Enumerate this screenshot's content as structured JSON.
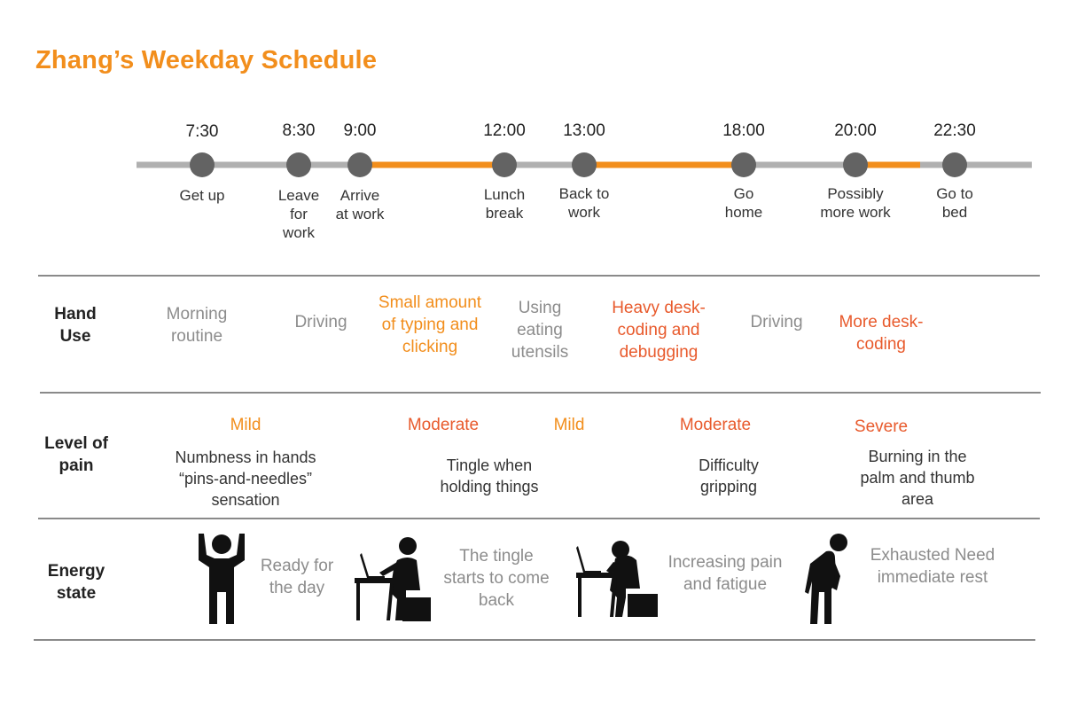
{
  "title": "Zhang’s Weekday Schedule",
  "colors": {
    "accent": "#f28e1c",
    "severe": "#e85a2c",
    "neutral_line": "#b0b0b0",
    "node": "#636363",
    "muted_text": "#8c8c8c"
  },
  "timeline": {
    "events": [
      {
        "time": "7:30",
        "label": "Get up"
      },
      {
        "time": "8:30",
        "label": "Leave for work"
      },
      {
        "time": "9:00",
        "label": "Arrive at work"
      },
      {
        "time": "12:00",
        "label": "Lunch break"
      },
      {
        "time": "13:00",
        "label": "Back to work"
      },
      {
        "time": "18:00",
        "label": "Go home"
      },
      {
        "time": "20:00",
        "label": "Possibly more work"
      },
      {
        "time": "22:30",
        "label": "Go to bed"
      }
    ],
    "highlighted_spans": [
      "9:00–12:00",
      "13:00–18:00",
      "20:00–22:30"
    ]
  },
  "rows": {
    "hand_use": {
      "header": "Hand Use",
      "items": [
        {
          "text": "Morning routine"
        },
        {
          "text": "Driving"
        },
        {
          "text": "Small amount of typing and clicking"
        },
        {
          "text": "Using eating utensils"
        },
        {
          "text": "Heavy desk-coding and debugging"
        },
        {
          "text": "Driving"
        },
        {
          "text": "More desk-coding"
        }
      ]
    },
    "pain": {
      "header": "Level of pain",
      "levels": [
        {
          "text": "Mild"
        },
        {
          "text": "Moderate"
        },
        {
          "text": "Mild"
        },
        {
          "text": "Moderate"
        },
        {
          "text": "Severe"
        }
      ],
      "descriptions": [
        {
          "text": "Numbness in hands “pins-and-needles” sensation"
        },
        {
          "text": "Tingle when holding things"
        },
        {
          "text": "Difficulty gripping"
        },
        {
          "text": "Burning in the palm and thumb area"
        }
      ]
    },
    "energy": {
      "header": "Energy state",
      "states": [
        {
          "icon": "person-arms-raised-icon",
          "text": "Ready for the day"
        },
        {
          "icon": "person-typing-at-desk-icon",
          "text": "The tingle starts to come back"
        },
        {
          "icon": "person-head-in-hand-at-desk-icon",
          "text": "Increasing pain and fatigue"
        },
        {
          "icon": "person-slumped-exhausted-icon",
          "text": "Exhausted Need immediate rest"
        }
      ]
    }
  }
}
